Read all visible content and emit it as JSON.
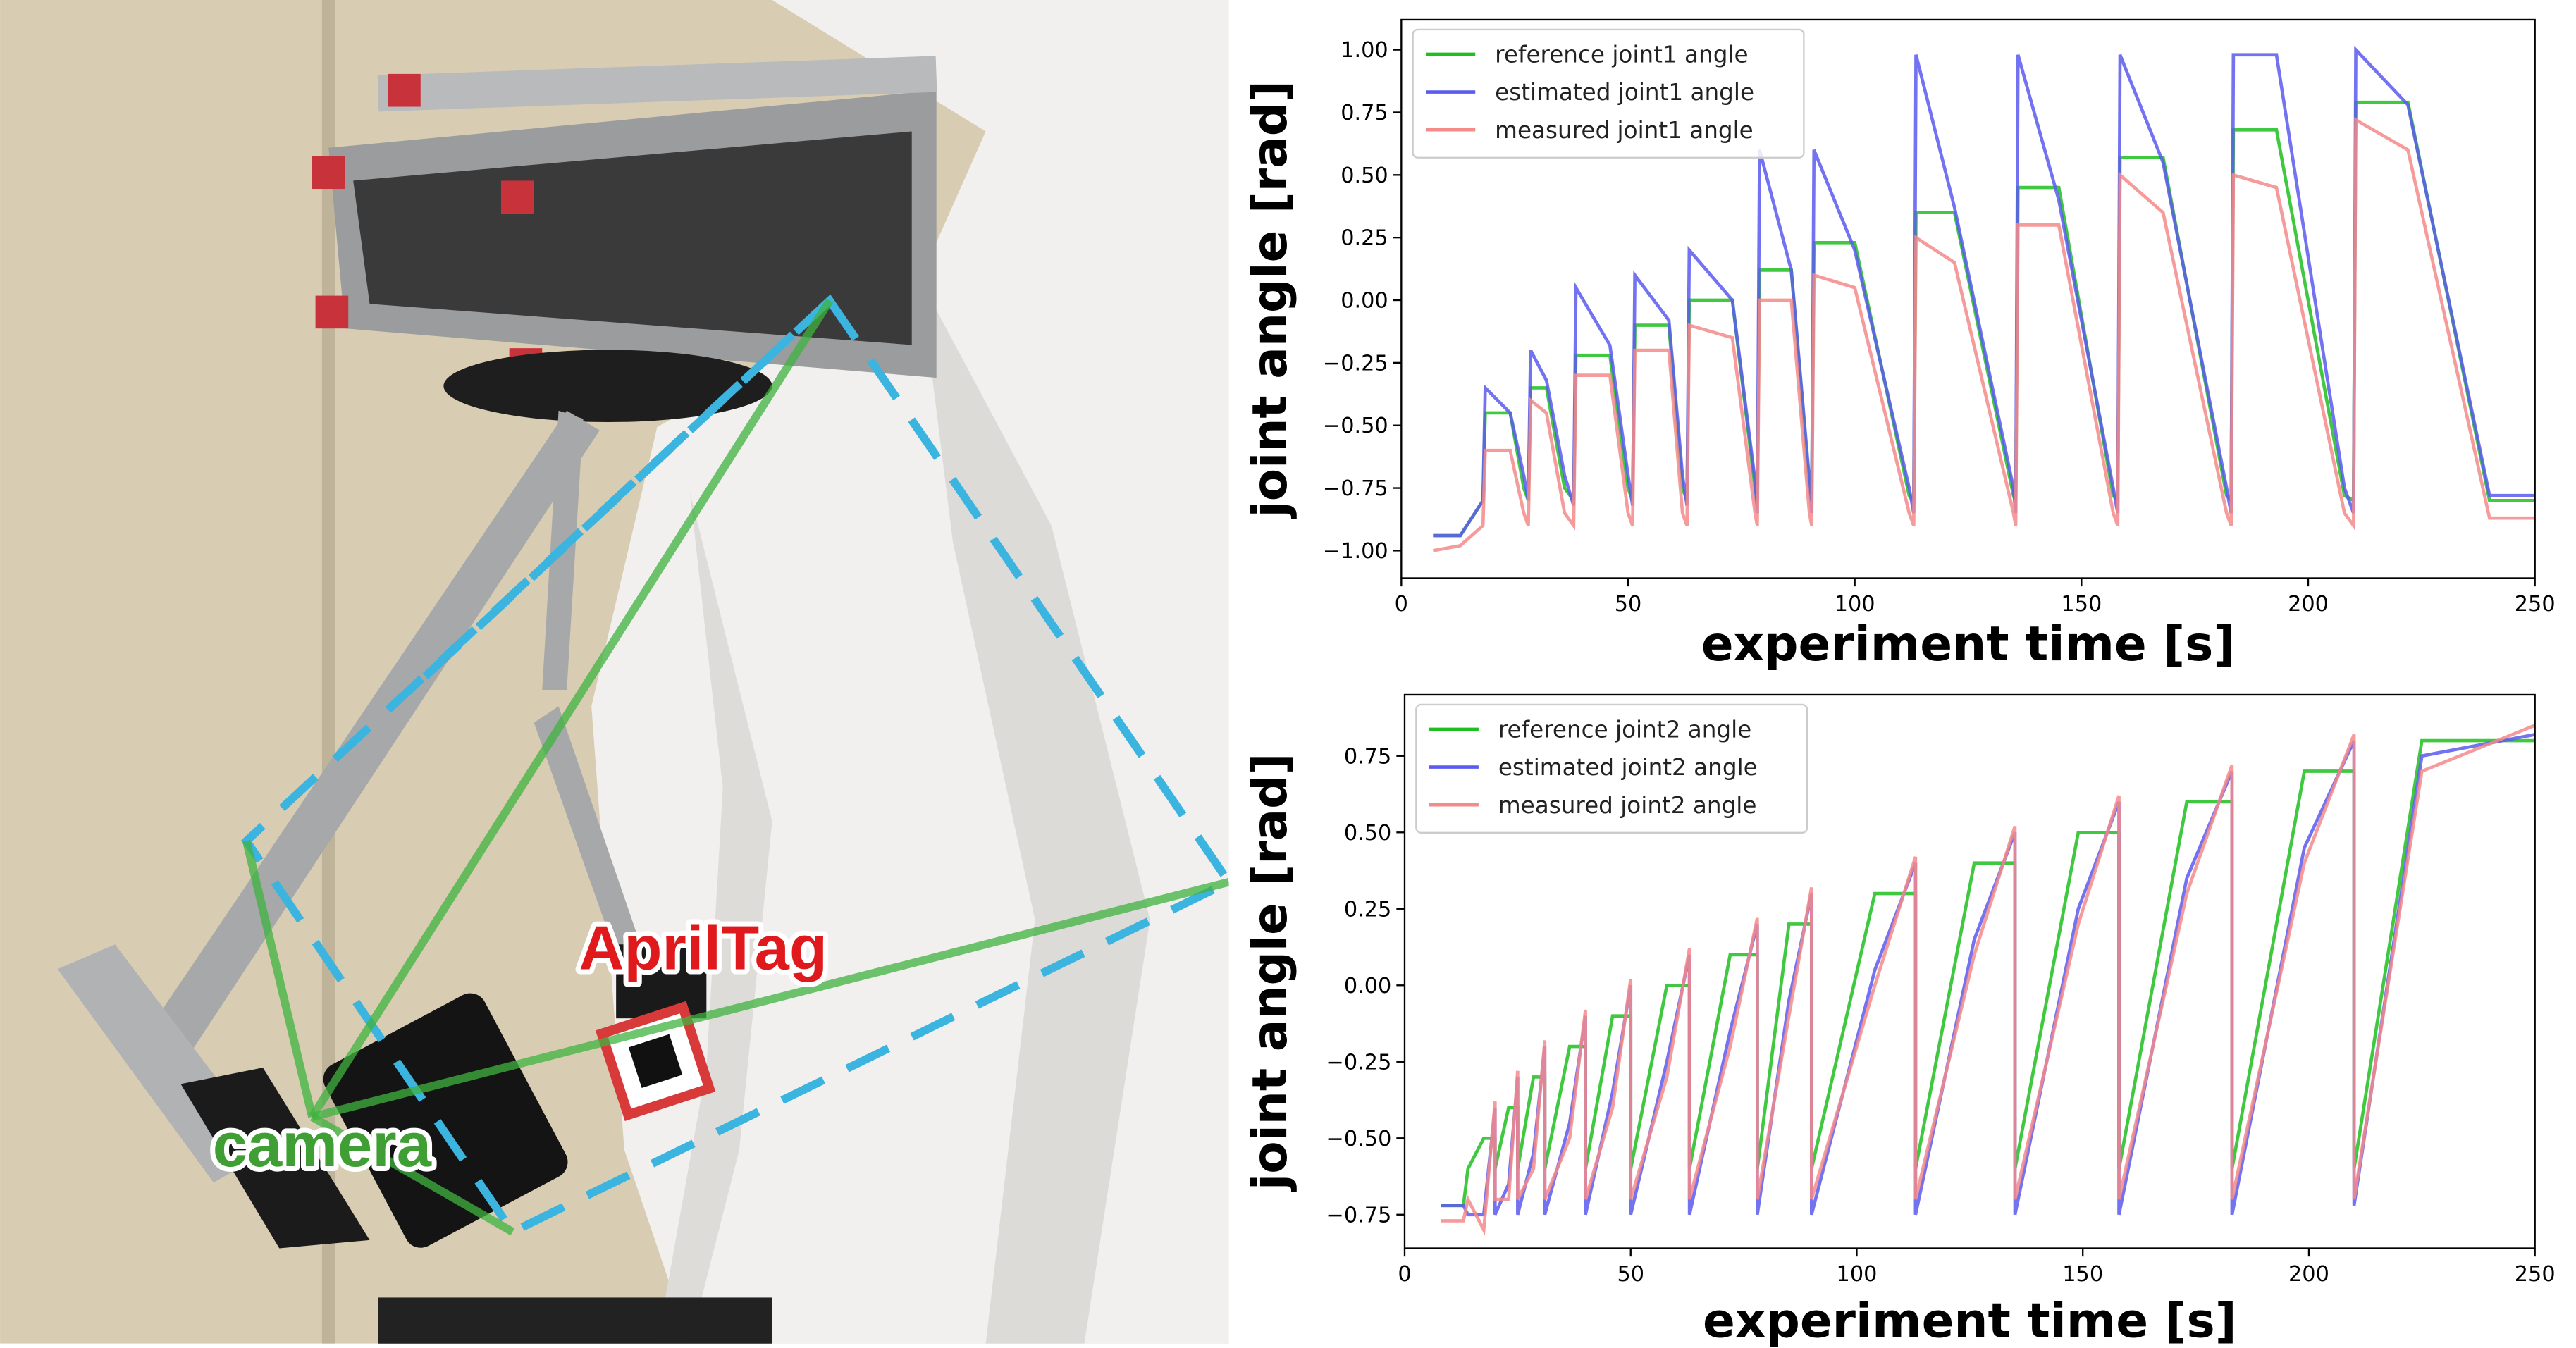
{
  "image": {
    "labels": [
      "AprilTag",
      "camera"
    ]
  },
  "chart_data": [
    {
      "type": "line",
      "xlabel": "experiment time [s]",
      "ylabel": "joint angle [rad]",
      "legend": "upper left",
      "xlim": [
        0,
        250
      ],
      "xticks": [
        0,
        50,
        100,
        150,
        200,
        250
      ],
      "ylim": [
        -1.11,
        1.12
      ],
      "yticks": [
        {
          "value": -1.0,
          "label": "−1.00"
        },
        {
          "value": -0.75,
          "label": "−0.75"
        },
        {
          "value": -0.5,
          "label": "−0.50"
        },
        {
          "value": -0.25,
          "label": "−0.25"
        },
        {
          "value": 0.0,
          "label": "0.00"
        },
        {
          "value": 0.25,
          "label": "0.25"
        },
        {
          "value": 0.5,
          "label": "0.50"
        },
        {
          "value": 0.75,
          "label": "0.75"
        },
        {
          "value": 1.0,
          "label": "1.00"
        }
      ],
      "x": [
        7,
        13,
        18,
        18.5,
        24,
        27,
        28,
        28.5,
        32,
        36,
        38,
        38.5,
        46,
        50,
        51,
        51.5,
        59,
        62,
        63,
        63.5,
        73,
        78,
        78.5,
        79,
        86,
        90,
        90.5,
        91,
        100,
        112,
        113,
        113.5,
        122,
        135,
        135.5,
        136,
        145,
        157,
        158,
        158.5,
        168,
        182,
        183,
        183.5,
        193,
        208,
        210,
        210.5,
        222,
        240,
        250
      ],
      "series": [
        {
          "name": "reference joint1 angle",
          "color": "#1fbf1f",
          "values": [
            -0.94,
            -0.94,
            -0.8,
            -0.45,
            -0.45,
            -0.75,
            -0.8,
            -0.35,
            -0.35,
            -0.75,
            -0.8,
            -0.22,
            -0.22,
            -0.75,
            -0.8,
            -0.1,
            -0.1,
            -0.75,
            -0.8,
            0.0,
            0.0,
            -0.75,
            -0.8,
            0.12,
            0.12,
            -0.75,
            -0.8,
            0.23,
            0.23,
            -0.78,
            -0.8,
            0.35,
            0.35,
            -0.78,
            -0.8,
            0.45,
            0.45,
            -0.78,
            -0.8,
            0.57,
            0.57,
            -0.78,
            -0.8,
            0.68,
            0.68,
            -0.78,
            -0.8,
            0.79,
            0.79,
            -0.8,
            -0.8
          ]
        },
        {
          "name": "estimated joint1 angle",
          "color": "#5b5bef",
          "values": [
            -0.94,
            -0.94,
            -0.8,
            -0.35,
            -0.45,
            -0.7,
            -0.8,
            -0.2,
            -0.32,
            -0.7,
            -0.82,
            0.05,
            -0.18,
            -0.7,
            -0.82,
            0.1,
            -0.08,
            -0.7,
            -0.82,
            0.2,
            0.0,
            -0.72,
            -0.85,
            0.6,
            0.12,
            -0.72,
            -0.85,
            0.6,
            0.2,
            -0.75,
            -0.85,
            0.98,
            0.37,
            -0.75,
            -0.85,
            0.98,
            0.4,
            -0.75,
            -0.85,
            0.98,
            0.55,
            -0.75,
            -0.85,
            0.98,
            0.98,
            -0.75,
            -0.85,
            1.0,
            0.78,
            -0.78,
            -0.78
          ]
        },
        {
          "name": "measured joint1 angle",
          "color": "#f58a8a",
          "values": [
            -1.0,
            -0.98,
            -0.9,
            -0.6,
            -0.6,
            -0.85,
            -0.9,
            -0.4,
            -0.45,
            -0.85,
            -0.9,
            -0.3,
            -0.3,
            -0.85,
            -0.9,
            -0.2,
            -0.2,
            -0.85,
            -0.9,
            -0.1,
            -0.15,
            -0.85,
            -0.9,
            0.0,
            0.0,
            -0.85,
            -0.9,
            0.1,
            0.05,
            -0.85,
            -0.9,
            0.25,
            0.15,
            -0.85,
            -0.9,
            0.3,
            0.3,
            -0.85,
            -0.9,
            0.5,
            0.35,
            -0.85,
            -0.9,
            0.5,
            0.45,
            -0.85,
            -0.9,
            0.72,
            0.6,
            -0.87,
            -0.87
          ]
        }
      ]
    },
    {
      "type": "line",
      "xlabel": "experiment time [s]",
      "ylabel": "joint angle [rad]",
      "legend": "upper left",
      "xlim": [
        0,
        250
      ],
      "xticks": [
        0,
        50,
        100,
        150,
        200,
        250
      ],
      "ylim": [
        -0.86,
        0.95
      ],
      "yticks": [
        {
          "value": -0.75,
          "label": "−0.75"
        },
        {
          "value": -0.5,
          "label": "−0.50"
        },
        {
          "value": -0.25,
          "label": "−0.25"
        },
        {
          "value": 0.0,
          "label": "0.00"
        },
        {
          "value": 0.25,
          "label": "0.25"
        },
        {
          "value": 0.5,
          "label": "0.50"
        },
        {
          "value": 0.75,
          "label": "0.75"
        }
      ],
      "x": [
        8,
        13,
        14,
        17.5,
        20,
        20,
        23,
        25,
        25,
        28.5,
        31,
        31,
        36.5,
        40,
        40,
        46,
        50,
        50,
        58,
        63,
        63,
        72,
        78,
        78,
        85,
        90,
        90,
        104,
        113,
        113,
        126,
        135,
        135,
        149,
        158,
        158,
        173,
        183,
        183,
        199,
        210,
        210,
        225,
        250
      ],
      "series": [
        {
          "name": "reference joint2 angle",
          "color": "#1fbf1f",
          "values": [
            -0.72,
            -0.72,
            -0.6,
            -0.5,
            -0.5,
            -0.6,
            -0.4,
            -0.4,
            -0.6,
            -0.3,
            -0.3,
            -0.6,
            -0.2,
            -0.2,
            -0.6,
            -0.1,
            -0.1,
            -0.6,
            0.0,
            0.0,
            -0.6,
            0.1,
            0.1,
            -0.6,
            0.2,
            0.2,
            -0.6,
            0.3,
            0.3,
            -0.6,
            0.4,
            0.4,
            -0.6,
            0.5,
            0.5,
            -0.6,
            0.6,
            0.6,
            -0.6,
            0.7,
            0.7,
            -0.6,
            0.8,
            0.8
          ]
        },
        {
          "name": "estimated joint2 angle",
          "color": "#5b5bef",
          "values": [
            -0.72,
            -0.72,
            -0.75,
            -0.75,
            -0.4,
            -0.75,
            -0.65,
            -0.3,
            -0.75,
            -0.55,
            -0.2,
            -0.75,
            -0.45,
            -0.1,
            -0.75,
            -0.35,
            0.0,
            -0.75,
            -0.25,
            0.1,
            -0.75,
            -0.15,
            0.2,
            -0.75,
            -0.05,
            0.3,
            -0.75,
            0.05,
            0.4,
            -0.75,
            0.15,
            0.5,
            -0.75,
            0.25,
            0.6,
            -0.75,
            0.35,
            0.7,
            -0.75,
            0.45,
            0.8,
            -0.72,
            0.75,
            0.82
          ]
        },
        {
          "name": "measured joint2 angle",
          "color": "#f58a8a",
          "values": [
            -0.77,
            -0.77,
            -0.7,
            -0.8,
            -0.38,
            -0.7,
            -0.7,
            -0.28,
            -0.7,
            -0.6,
            -0.18,
            -0.7,
            -0.5,
            -0.08,
            -0.7,
            -0.4,
            0.02,
            -0.7,
            -0.3,
            0.12,
            -0.7,
            -0.2,
            0.22,
            -0.7,
            -0.1,
            0.32,
            -0.7,
            0.0,
            0.42,
            -0.7,
            0.1,
            0.52,
            -0.7,
            0.2,
            0.62,
            -0.7,
            0.3,
            0.72,
            -0.7,
            0.4,
            0.82,
            -0.7,
            0.7,
            0.85
          ]
        }
      ]
    }
  ]
}
